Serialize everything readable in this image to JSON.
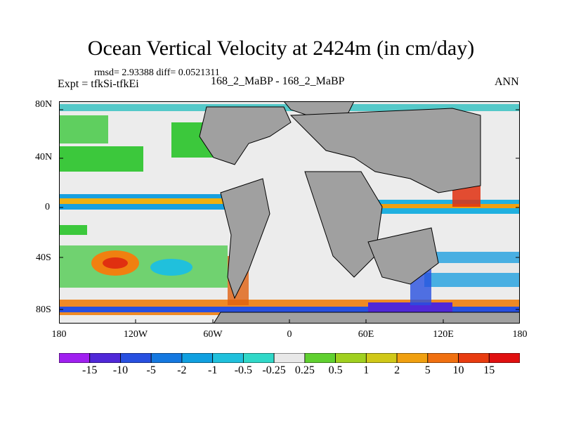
{
  "plot": {
    "title": "Ocean Vertical Velocity at 2424m (in cm/day)",
    "stats": "rmsd= 2.93388 diff= 0.0521311",
    "expt": "Expt = tfkSi-tfkEi",
    "case": "168_2_MaBP - 168_2_MaBP",
    "season": "ANN"
  },
  "axes": {
    "lat_labels": [
      "80N",
      "40N",
      "0",
      "40S",
      "80S"
    ],
    "lon_labels": [
      "180",
      "120W",
      "60W",
      "0",
      "60E",
      "120E",
      "180"
    ]
  },
  "colorbar": {
    "labels": [
      "-15",
      "-10",
      "-5",
      "-2",
      "-1",
      "-0.5",
      "-0.25",
      "0.25",
      "0.5",
      "1",
      "2",
      "5",
      "10",
      "15"
    ],
    "colors": [
      "#a020f0",
      "#5028d8",
      "#2850e0",
      "#1478e0",
      "#10a0e0",
      "#20c0dc",
      "#30d8c8",
      "#e8e8e8",
      "#60d030",
      "#a0d020",
      "#d0c818",
      "#f0a010",
      "#f07010",
      "#e83c10",
      "#e01010"
    ]
  },
  "map": {
    "land_color": "#a0a0a0",
    "ocean_color": "#ececec"
  }
}
